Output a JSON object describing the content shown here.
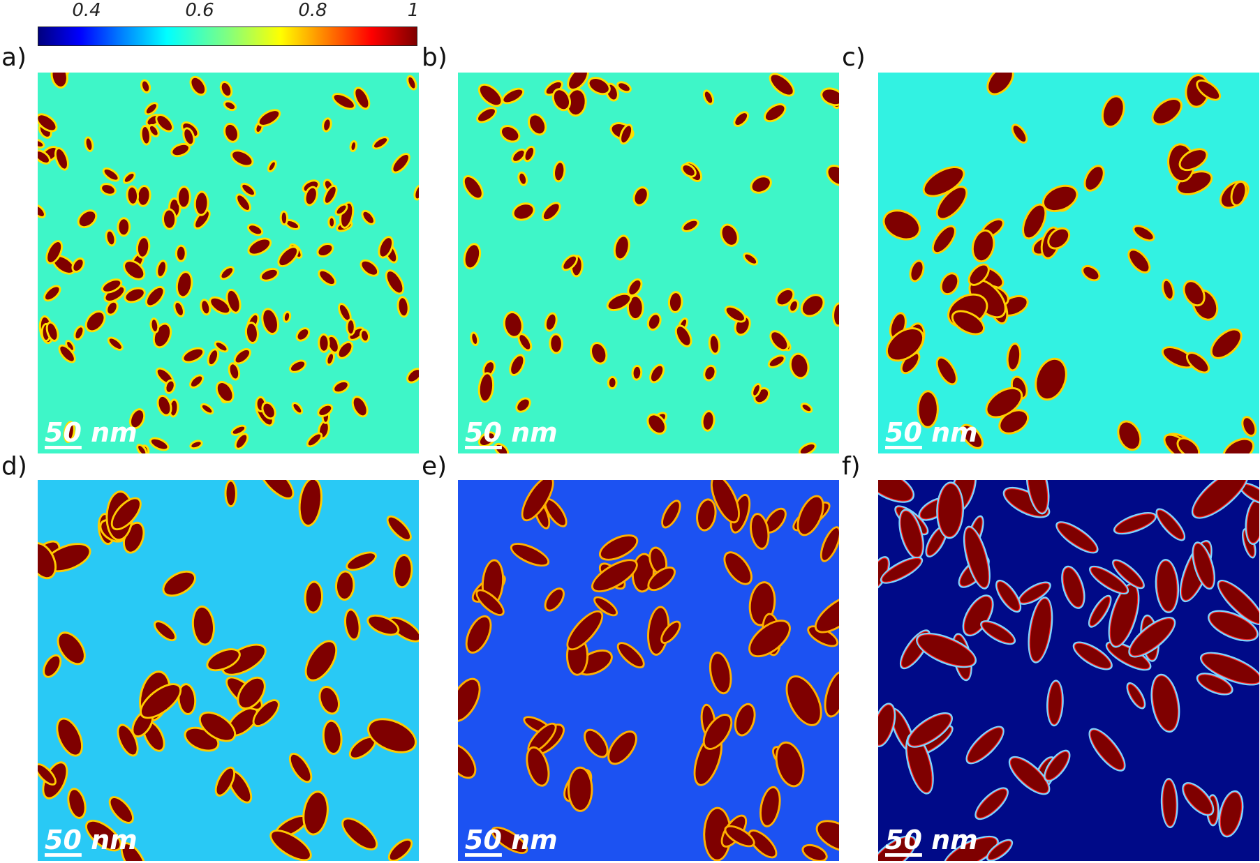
{
  "colorbar": {
    "ticks": [
      "0.4",
      "0.6",
      "0.8",
      "1"
    ],
    "colors": [
      "#00007f",
      "#0000ff",
      "#00ffff",
      "#80ff80",
      "#ffff00",
      "#ff8000",
      "#ff0000",
      "#7f0000"
    ]
  },
  "panels": [
    {
      "label": "a)",
      "scale_num": "50",
      "scale_unit": "nm",
      "background": "#3ef6c8",
      "particle_color": "#7f0000"
    },
    {
      "label": "b)",
      "scale_num": "50",
      "scale_unit": "nm",
      "background": "#3ef6c8",
      "particle_color": "#7f0000"
    },
    {
      "label": "c)",
      "scale_num": "50",
      "scale_unit": "nm",
      "background": "#32f2e2",
      "particle_color": "#7f0000"
    },
    {
      "label": "d)",
      "scale_num": "50",
      "scale_unit": "nm",
      "background": "#29c9f5",
      "particle_color": "#7f0000"
    },
    {
      "label": "e)",
      "scale_num": "50",
      "scale_unit": "nm",
      "background": "#1c52f2",
      "particle_color": "#7f0000"
    },
    {
      "label": "f)",
      "scale_num": "50",
      "scale_unit": "nm",
      "background": "#000a88",
      "particle_color": "#7f0000"
    }
  ]
}
